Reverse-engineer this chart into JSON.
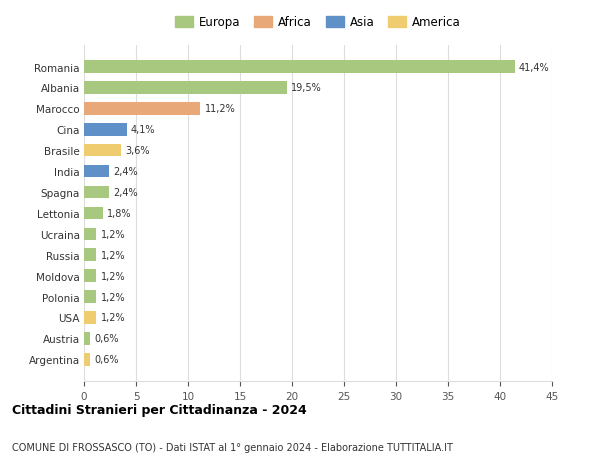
{
  "countries": [
    "Romania",
    "Albania",
    "Marocco",
    "Cina",
    "Brasile",
    "India",
    "Spagna",
    "Lettonia",
    "Ucraina",
    "Russia",
    "Moldova",
    "Polonia",
    "USA",
    "Austria",
    "Argentina"
  ],
  "values": [
    41.4,
    19.5,
    11.2,
    4.1,
    3.6,
    2.4,
    2.4,
    1.8,
    1.2,
    1.2,
    1.2,
    1.2,
    1.2,
    0.6,
    0.6
  ],
  "labels": [
    "41,4%",
    "19,5%",
    "11,2%",
    "4,1%",
    "3,6%",
    "2,4%",
    "2,4%",
    "1,8%",
    "1,2%",
    "1,2%",
    "1,2%",
    "1,2%",
    "1,2%",
    "0,6%",
    "0,6%"
  ],
  "continents": [
    "Europa",
    "Europa",
    "Africa",
    "Asia",
    "America",
    "Asia",
    "Europa",
    "Europa",
    "Europa",
    "Europa",
    "Europa",
    "Europa",
    "America",
    "Europa",
    "America"
  ],
  "colors": {
    "Europa": "#a8c880",
    "Africa": "#e8a878",
    "Asia": "#6090c8",
    "America": "#f0cc70"
  },
  "legend_order": [
    "Europa",
    "Africa",
    "Asia",
    "America"
  ],
  "title": "Cittadini Stranieri per Cittadinanza - 2024",
  "subtitle": "COMUNE DI FROSSASCO (TO) - Dati ISTAT al 1° gennaio 2024 - Elaborazione TUTTITALIA.IT",
  "xlim": [
    0,
    45
  ],
  "xticks": [
    0,
    5,
    10,
    15,
    20,
    25,
    30,
    35,
    40,
    45
  ],
  "background_color": "#ffffff",
  "grid_color": "#dddddd",
  "bar_height": 0.6
}
